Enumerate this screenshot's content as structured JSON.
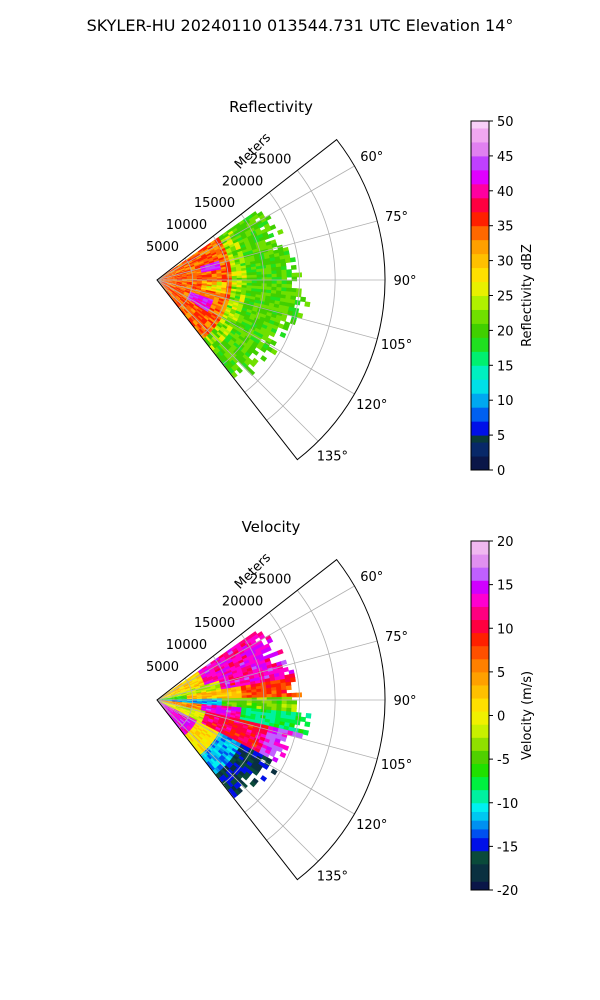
{
  "figure": {
    "title": "SKYLER-HU  20240110  013544.731 UTC Elevation 14°"
  },
  "chart_data": [
    {
      "type": "heatmap",
      "subtype": "polar-sector (PPI radar scan)",
      "title": "Reflectivity",
      "radial_label": "Meters",
      "radial_ticks": [
        5000,
        10000,
        15000,
        20000,
        25000
      ],
      "radial_range": [
        0,
        32000
      ],
      "angle_ticks": [
        "60°",
        "75°",
        "90°",
        "105°",
        "120°",
        "135°"
      ],
      "angle_range_deg": [
        52,
        142
      ],
      "grid": true,
      "colorbar": {
        "label": "Reflectivity dBZ",
        "range": [
          0,
          50
        ],
        "ticks": [
          0,
          5,
          10,
          15,
          20,
          25,
          30,
          35,
          40,
          45,
          50
        ]
      },
      "data_extent": {
        "azimuth_deg": [
          55,
          140
        ],
        "range_m": [
          0,
          22000
        ]
      },
      "features": [
        {
          "field": "dBZ 25–40 (yellow/red)",
          "range_m": [
            0,
            10000
          ]
        },
        {
          "field": "dBZ 40–45 (magenta cores)",
          "azimuth_deg": [
            73,
            80
          ],
          "range_m": [
            6500,
            8500
          ]
        },
        {
          "field": "dBZ 40–45 (magenta cores)",
          "azimuth_deg": [
            111,
            121
          ],
          "range_m": [
            5500,
            8000
          ]
        },
        {
          "field": "dBZ 15–25 (green)",
          "range_m": [
            10000,
            22000
          ]
        }
      ]
    },
    {
      "type": "heatmap",
      "subtype": "polar-sector (PPI radar scan)",
      "title": "Velocity",
      "radial_label": "Meters",
      "radial_ticks": [
        5000,
        10000,
        15000,
        20000,
        25000
      ],
      "radial_range": [
        0,
        32000
      ],
      "angle_ticks": [
        "60°",
        "75°",
        "90°",
        "105°",
        "120°",
        "135°"
      ],
      "angle_range_deg": [
        52,
        142
      ],
      "grid": true,
      "colorbar": {
        "label": "Velocity (m/s)",
        "range": [
          -20,
          20
        ],
        "ticks": [
          -20,
          -15,
          -10,
          -5,
          0,
          5,
          10,
          15,
          20
        ]
      },
      "data_extent": {
        "azimuth_deg": [
          55,
          140
        ],
        "range_m": [
          0,
          22000
        ]
      },
      "features": [
        {
          "field": "+10 to +18 m/s (red/magenta)",
          "azimuth_deg": [
            55,
            80
          ],
          "range_m": [
            8000,
            22000
          ]
        },
        {
          "field": "0 to +5 m/s (yellow)",
          "azimuth_deg": [
            80,
            100
          ],
          "range_m": [
            3000,
            18000
          ]
        },
        {
          "field": "-10 to -15 m/s (cyan/blue)",
          "azimuth_deg": [
            88,
            95
          ],
          "range_m": [
            0,
            9000
          ]
        },
        {
          "field": "-10 to -15 m/s (cyan/blue)",
          "azimuth_deg": [
            120,
            140
          ],
          "range_m": [
            8000,
            14000
          ]
        },
        {
          "field": "+10 to +18 m/s (red/magenta)",
          "azimuth_deg": [
            102,
            120
          ],
          "range_m": [
            8000,
            18000
          ]
        }
      ]
    }
  ]
}
